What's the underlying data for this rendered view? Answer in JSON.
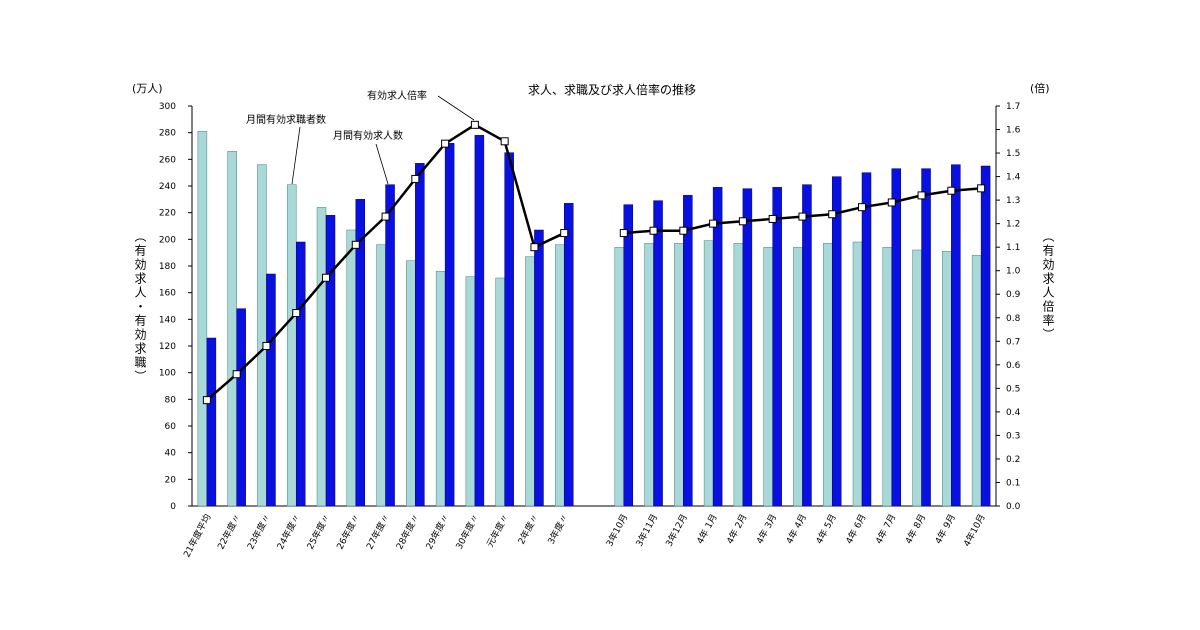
{
  "chart_data": {
    "type": "bar",
    "title": "求人、求職及び求人倍率の推移",
    "left_unit": "(万人)",
    "right_unit": "(倍)",
    "ylabel_left": "︵有効求人・有効求職︶",
    "ylabel_right": "︵有効求人倍率︶",
    "ylim_left": [
      0,
      300
    ],
    "ylim_right": [
      0.0,
      1.7
    ],
    "left_ticks": [
      "0",
      "20",
      "40",
      "60",
      "80",
      "100",
      "120",
      "140",
      "160",
      "180",
      "200",
      "220",
      "240",
      "260",
      "280",
      "300"
    ],
    "right_ticks": [
      "0.0",
      "0.1",
      "0.2",
      "0.3",
      "0.4",
      "0.5",
      "0.6",
      "0.7",
      "0.8",
      "0.9",
      "1.0",
      "1.1",
      "1.2",
      "1.3",
      "1.4",
      "1.5",
      "1.6",
      "1.7"
    ],
    "grid": false,
    "legend": "none",
    "categories": [
      "21年度平均",
      "22年度〃",
      "23年度〃",
      "24年度〃",
      "25年度〃",
      "26年度〃",
      "27年度〃",
      "28年度〃",
      "29年度〃",
      "30年度〃",
      "元年度〃",
      "2年度〃",
      "3年度〃",
      "",
      "3年10月",
      "3年11月",
      "3年12月",
      "4年 1月",
      "4年 2月",
      "4年 3月",
      "4年 4月",
      "4年 5月",
      "4年 6月",
      "4年 7月",
      "4年 8月",
      "4年 9月",
      "4年10月"
    ],
    "series": [
      {
        "name": "月間有効求職者数",
        "kind": "bar",
        "axis": "left",
        "color": "#a8d8d8",
        "values": [
          281,
          266,
          256,
          241,
          224,
          207,
          196,
          184,
          176,
          172,
          171,
          187,
          196,
          null,
          194,
          197,
          197,
          199,
          197,
          194,
          194,
          197,
          198,
          194,
          192,
          191,
          188
        ]
      },
      {
        "name": "月間有効求人数",
        "kind": "bar",
        "axis": "left",
        "color": "#0a10e0",
        "values": [
          126,
          148,
          174,
          198,
          218,
          230,
          241,
          257,
          272,
          278,
          265,
          207,
          227,
          null,
          226,
          229,
          233,
          239,
          238,
          239,
          241,
          247,
          250,
          253,
          253,
          256,
          255
        ]
      },
      {
        "name": "有効求人倍率",
        "kind": "line",
        "axis": "right",
        "color": "#000000",
        "values": [
          0.45,
          0.56,
          0.68,
          0.82,
          0.97,
          1.11,
          1.23,
          1.39,
          1.54,
          1.62,
          1.55,
          1.1,
          1.16,
          null,
          1.16,
          1.17,
          1.17,
          1.2,
          1.21,
          1.22,
          1.23,
          1.24,
          1.27,
          1.29,
          1.32,
          1.34,
          1.35
        ]
      }
    ],
    "annotations": [
      "有効求人倍率",
      "月間有効求職者数",
      "月間有効求人数"
    ]
  }
}
